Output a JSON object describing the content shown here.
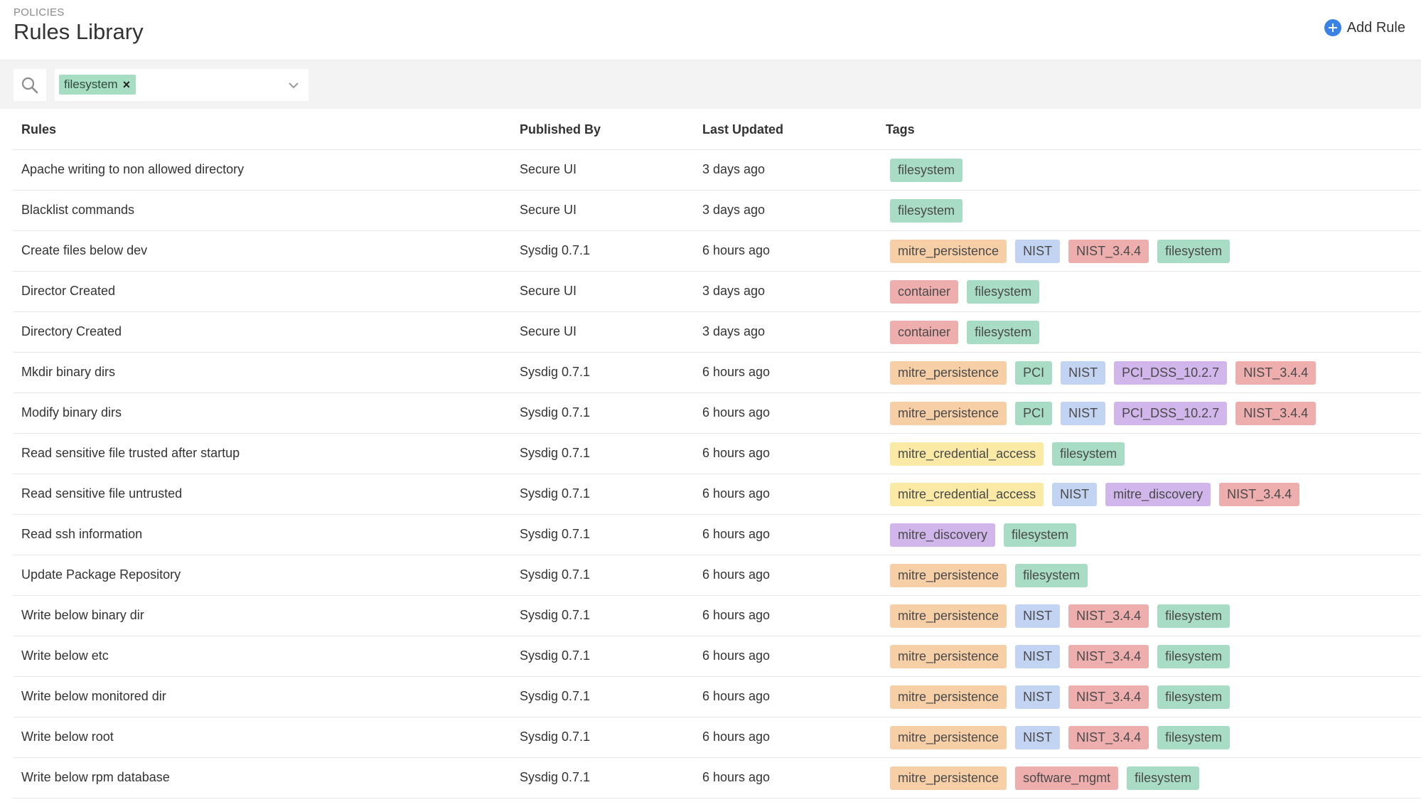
{
  "header": {
    "breadcrumb": "POLICIES",
    "title": "Rules Library",
    "add_label": "Add Rule"
  },
  "filter": {
    "active_tag": "filesystem"
  },
  "table": {
    "columns": [
      "Rules",
      "Published By",
      "Last Updated",
      "Tags"
    ],
    "rows": [
      {
        "name": "Apache writing to non allowed directory",
        "publisher": "Secure UI",
        "updated": "3 days ago",
        "tags": [
          "filesystem"
        ]
      },
      {
        "name": "Blacklist commands",
        "publisher": "Secure UI",
        "updated": "3 days ago",
        "tags": [
          "filesystem"
        ]
      },
      {
        "name": "Create files below dev",
        "publisher": "Sysdig 0.7.1",
        "updated": "6 hours ago",
        "tags": [
          "mitre_persistence",
          "NIST",
          "NIST_3.4.4",
          "filesystem"
        ]
      },
      {
        "name": "Director Created",
        "publisher": "Secure UI",
        "updated": "3 days ago",
        "tags": [
          "container",
          "filesystem"
        ]
      },
      {
        "name": "Directory Created",
        "publisher": "Secure UI",
        "updated": "3 days ago",
        "tags": [
          "container",
          "filesystem"
        ]
      },
      {
        "name": "Mkdir binary dirs",
        "publisher": "Sysdig 0.7.1",
        "updated": "6 hours ago",
        "tags": [
          "mitre_persistence",
          "PCI",
          "NIST",
          "PCI_DSS_10.2.7",
          "NIST_3.4.4"
        ]
      },
      {
        "name": "Modify binary dirs",
        "publisher": "Sysdig 0.7.1",
        "updated": "6 hours ago",
        "tags": [
          "mitre_persistence",
          "PCI",
          "NIST",
          "PCI_DSS_10.2.7",
          "NIST_3.4.4"
        ]
      },
      {
        "name": "Read sensitive file trusted after startup",
        "publisher": "Sysdig 0.7.1",
        "updated": "6 hours ago",
        "tags": [
          "mitre_credential_access",
          "filesystem"
        ]
      },
      {
        "name": "Read sensitive file untrusted",
        "publisher": "Sysdig 0.7.1",
        "updated": "6 hours ago",
        "tags": [
          "mitre_credential_access",
          "NIST",
          "mitre_discovery",
          "NIST_3.4.4"
        ]
      },
      {
        "name": "Read ssh information",
        "publisher": "Sysdig 0.7.1",
        "updated": "6 hours ago",
        "tags": [
          "mitre_discovery",
          "filesystem"
        ]
      },
      {
        "name": "Update Package Repository",
        "publisher": "Sysdig 0.7.1",
        "updated": "6 hours ago",
        "tags": [
          "mitre_persistence",
          "filesystem"
        ]
      },
      {
        "name": "Write below binary dir",
        "publisher": "Sysdig 0.7.1",
        "updated": "6 hours ago",
        "tags": [
          "mitre_persistence",
          "NIST",
          "NIST_3.4.4",
          "filesystem"
        ]
      },
      {
        "name": "Write below etc",
        "publisher": "Sysdig 0.7.1",
        "updated": "6 hours ago",
        "tags": [
          "mitre_persistence",
          "NIST",
          "NIST_3.4.4",
          "filesystem"
        ]
      },
      {
        "name": "Write below monitored dir",
        "publisher": "Sysdig 0.7.1",
        "updated": "6 hours ago",
        "tags": [
          "mitre_persistence",
          "NIST",
          "NIST_3.4.4",
          "filesystem"
        ]
      },
      {
        "name": "Write below root",
        "publisher": "Sysdig 0.7.1",
        "updated": "6 hours ago",
        "tags": [
          "mitre_persistence",
          "NIST",
          "NIST_3.4.4",
          "filesystem"
        ]
      },
      {
        "name": "Write below rpm database",
        "publisher": "Sysdig 0.7.1",
        "updated": "6 hours ago",
        "tags": [
          "mitre_persistence",
          "software_mgmt",
          "filesystem"
        ]
      }
    ]
  },
  "tag_colors": {
    "filesystem": "#a8dcc4",
    "mitre_persistence": "#f6cfa6",
    "NIST": "#c3d3f2",
    "NIST_3.4.4": "#eeaeae",
    "container": "#eeaeae",
    "PCI": "#a8dcc4",
    "PCI_DSS_10.2.7": "#d1b6ec",
    "mitre_credential_access": "#faeaa6",
    "mitre_discovery": "#d1b6ec",
    "software_mgmt": "#eeaeae"
  },
  "icons": {
    "search": "search-icon",
    "add": "plus-circle-icon",
    "remove": "close-icon",
    "dropdown": "chevron-down-icon"
  }
}
